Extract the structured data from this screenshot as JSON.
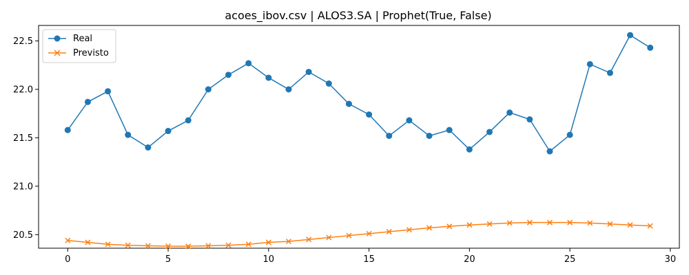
{
  "chart_data": {
    "type": "line",
    "title": "acoes_ibov.csv | ALOS3.SA | Prophet(True, False)",
    "xlabel": "",
    "ylabel": "",
    "xlim": [
      -1.45,
      30.45
    ],
    "ylim": [
      20.36,
      22.66
    ],
    "xticks": [
      0,
      5,
      10,
      15,
      20,
      25,
      30
    ],
    "yticks": [
      20.5,
      21.0,
      21.5,
      22.0,
      22.5
    ],
    "xtick_labels": [
      "0",
      "5",
      "10",
      "15",
      "20",
      "25",
      "30"
    ],
    "ytick_labels": [
      "20.5",
      "21.0",
      "21.5",
      "22.0",
      "22.5"
    ],
    "grid": false,
    "legend_position": "top-left",
    "x": [
      0,
      1,
      2,
      3,
      4,
      5,
      6,
      7,
      8,
      9,
      10,
      11,
      12,
      13,
      14,
      15,
      16,
      17,
      18,
      19,
      20,
      21,
      22,
      23,
      24,
      25,
      26,
      27,
      28,
      29
    ],
    "series": [
      {
        "name": "Real",
        "color": "#1f77b4",
        "marker": "circle",
        "values": [
          21.58,
          21.87,
          21.98,
          21.53,
          21.4,
          21.57,
          21.68,
          22.0,
          22.15,
          22.27,
          22.12,
          22.0,
          22.18,
          22.06,
          21.85,
          21.74,
          21.52,
          21.68,
          21.52,
          21.58,
          21.38,
          21.56,
          21.76,
          21.69,
          21.36,
          21.53,
          22.26,
          22.17,
          22.56,
          22.43
        ]
      },
      {
        "name": "Previsto",
        "color": "#ff7f0e",
        "marker": "x",
        "values": [
          20.44,
          20.42,
          20.4,
          20.39,
          20.385,
          20.38,
          20.38,
          20.385,
          20.39,
          20.4,
          20.42,
          20.43,
          20.45,
          20.47,
          20.49,
          20.51,
          20.53,
          20.55,
          20.57,
          20.585,
          20.6,
          20.61,
          20.62,
          20.625,
          20.625,
          20.625,
          20.62,
          20.61,
          20.6,
          20.59
        ]
      }
    ]
  }
}
